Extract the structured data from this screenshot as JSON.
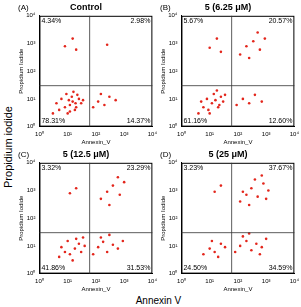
{
  "figure": {
    "ylabel": "Propidium iodide",
    "xlabel": "Annexin V"
  },
  "chart_data": [
    {
      "type": "scatter",
      "title": "Control",
      "panel": "(A)",
      "color": "#e3261c",
      "log": true,
      "grid": false,
      "xlabel": "Annexin_V",
      "ylabel": "Propidium Iodide",
      "xlim": [
        1,
        10000
      ],
      "ylim": [
        1,
        10000
      ],
      "xticks": [
        {
          "value": 1,
          "label": "10⁰"
        },
        {
          "value": 10,
          "label": "10¹"
        },
        {
          "value": 100,
          "label": "10²"
        },
        {
          "value": 1000,
          "label": "10³"
        },
        {
          "value": 10000,
          "label": "10⁴"
        }
      ],
      "yticks": [
        {
          "value": 1,
          "label": "10⁰"
        },
        {
          "value": 10,
          "label": "10¹"
        },
        {
          "value": 100,
          "label": "10²"
        },
        {
          "value": 1000,
          "label": "10³"
        },
        {
          "value": 10000,
          "label": "10⁴"
        }
      ],
      "gate": {
        "x": 60,
        "y": 30
      },
      "quadrant_labels": [
        "4.34%",
        "2.98%",
        "78.31%",
        "14.37%"
      ],
      "x": [
        3,
        5,
        8,
        10,
        12,
        15,
        20,
        25,
        30,
        6,
        9,
        14,
        18,
        22,
        35,
        4,
        11,
        16,
        12,
        19,
        80,
        120,
        200,
        300,
        150,
        500,
        8,
        15,
        20,
        250
      ],
      "values": [
        3,
        4,
        5,
        3,
        6,
        8,
        5,
        10,
        7,
        10,
        15,
        12,
        4,
        14,
        9,
        7,
        9,
        18,
        3.5,
        7,
        5,
        8,
        6,
        12,
        15,
        9,
        800,
        1500,
        600,
        900
      ]
    },
    {
      "type": "scatter",
      "title": "5 (6.25 μM)",
      "panel": "(B)",
      "color": "#e3261c",
      "log": true,
      "grid": false,
      "xlabel": "Annexin_V",
      "ylabel": "Propidium Iodide",
      "xlim": [
        1,
        10000
      ],
      "ylim": [
        1,
        10000
      ],
      "xticks": [
        {
          "value": 1,
          "label": "10⁰"
        },
        {
          "value": 10,
          "label": "10¹"
        },
        {
          "value": 100,
          "label": "10²"
        },
        {
          "value": 1000,
          "label": "10³"
        },
        {
          "value": 10000,
          "label": "10⁴"
        }
      ],
      "yticks": [
        {
          "value": 1,
          "label": "10⁰"
        },
        {
          "value": 10,
          "label": "10¹"
        },
        {
          "value": 100,
          "label": "10²"
        },
        {
          "value": 1000,
          "label": "10³"
        },
        {
          "value": 10000,
          "label": "10⁴"
        }
      ],
      "gate": {
        "x": 60,
        "y": 30
      },
      "quadrant_labels": [
        "5.67%",
        "20.57%",
        "61.16%",
        "12.60%"
      ],
      "x": [
        4,
        6,
        9,
        12,
        16,
        20,
        25,
        8,
        14,
        30,
        5,
        18,
        35,
        10,
        22,
        90,
        150,
        250,
        400,
        700,
        120,
        200,
        350,
        600,
        900,
        250,
        500,
        10,
        18,
        25
      ],
      "values": [
        3,
        5,
        4,
        7,
        9,
        5,
        12,
        10,
        15,
        8,
        8,
        20,
        14,
        3,
        6,
        6,
        10,
        7,
        14,
        8,
        400,
        800,
        1200,
        600,
        1500,
        300,
        2500,
        700,
        1500,
        500
      ]
    },
    {
      "type": "scatter",
      "title": "5 (12.5 μM)",
      "panel": "(C)",
      "color": "#e3261c",
      "log": true,
      "grid": false,
      "xlabel": "Annexin_V",
      "ylabel": "Propidium Iodide",
      "xlim": [
        1,
        10000
      ],
      "ylim": [
        1,
        10000
      ],
      "xticks": [
        {
          "value": 1,
          "label": "10⁰"
        },
        {
          "value": 10,
          "label": "10¹"
        },
        {
          "value": 100,
          "label": "10²"
        },
        {
          "value": 1000,
          "label": "10³"
        },
        {
          "value": 10000,
          "label": "10⁴"
        }
      ],
      "yticks": [
        {
          "value": 1,
          "label": "10⁰"
        },
        {
          "value": 10,
          "label": "10¹"
        },
        {
          "value": 100,
          "label": "10²"
        },
        {
          "value": 1000,
          "label": "10³"
        },
        {
          "value": 10000,
          "label": "10⁴"
        }
      ],
      "gate": {
        "x": 60,
        "y": 30
      },
      "quadrant_labels": [
        "3.32%",
        "23.29%",
        "41.86%",
        "31.53%"
      ],
      "x": [
        5,
        8,
        12,
        18,
        25,
        10,
        30,
        15,
        40,
        6,
        20,
        35,
        80,
        120,
        180,
        250,
        400,
        600,
        900,
        150,
        300,
        150,
        250,
        400,
        700,
        1000,
        300,
        600,
        12,
        20
      ],
      "values": [
        4,
        6,
        5,
        8,
        12,
        15,
        6,
        3,
        10,
        9,
        18,
        20,
        5,
        9,
        14,
        6,
        11,
        8,
        15,
        20,
        25,
        500,
        900,
        1500,
        700,
        2000,
        300,
        3000,
        800,
        1200
      ]
    },
    {
      "type": "scatter",
      "title": "5 (25 μM)",
      "panel": "(D)",
      "color": "#e3261c",
      "log": true,
      "grid": false,
      "xlabel": "Annexin_V",
      "ylabel": "Propidium Iodide",
      "xlim": [
        1,
        10000
      ],
      "ylim": [
        1,
        10000
      ],
      "xticks": [
        {
          "value": 1,
          "label": "10⁰"
        },
        {
          "value": 10,
          "label": "10¹"
        },
        {
          "value": 100,
          "label": "10²"
        },
        {
          "value": 1000,
          "label": "10³"
        },
        {
          "value": 10000,
          "label": "10⁴"
        }
      ],
      "yticks": [
        {
          "value": 1,
          "label": "10⁰"
        },
        {
          "value": 10,
          "label": "10¹"
        },
        {
          "value": 100,
          "label": "10²"
        },
        {
          "value": 1000,
          "label": "10³"
        },
        {
          "value": 10000,
          "label": "10⁴"
        }
      ],
      "gate": {
        "x": 60,
        "y": 30
      },
      "quadrant_labels": [
        "3.23%",
        "37.67%",
        "24.50%",
        "34.59%"
      ],
      "x": [
        6,
        10,
        15,
        25,
        35,
        12,
        20,
        80,
        120,
        200,
        300,
        450,
        700,
        1000,
        150,
        250,
        600,
        120,
        200,
        300,
        500,
        800,
        1200,
        250,
        400,
        700,
        150,
        1000,
        15,
        25
      ],
      "values": [
        5,
        8,
        6,
        12,
        9,
        15,
        4,
        6,
        10,
        15,
        7,
        12,
        9,
        18,
        22,
        28,
        5,
        400,
        700,
        1200,
        600,
        1800,
        1000,
        300,
        2500,
        3500,
        900,
        500,
        900,
        1500
      ]
    }
  ]
}
